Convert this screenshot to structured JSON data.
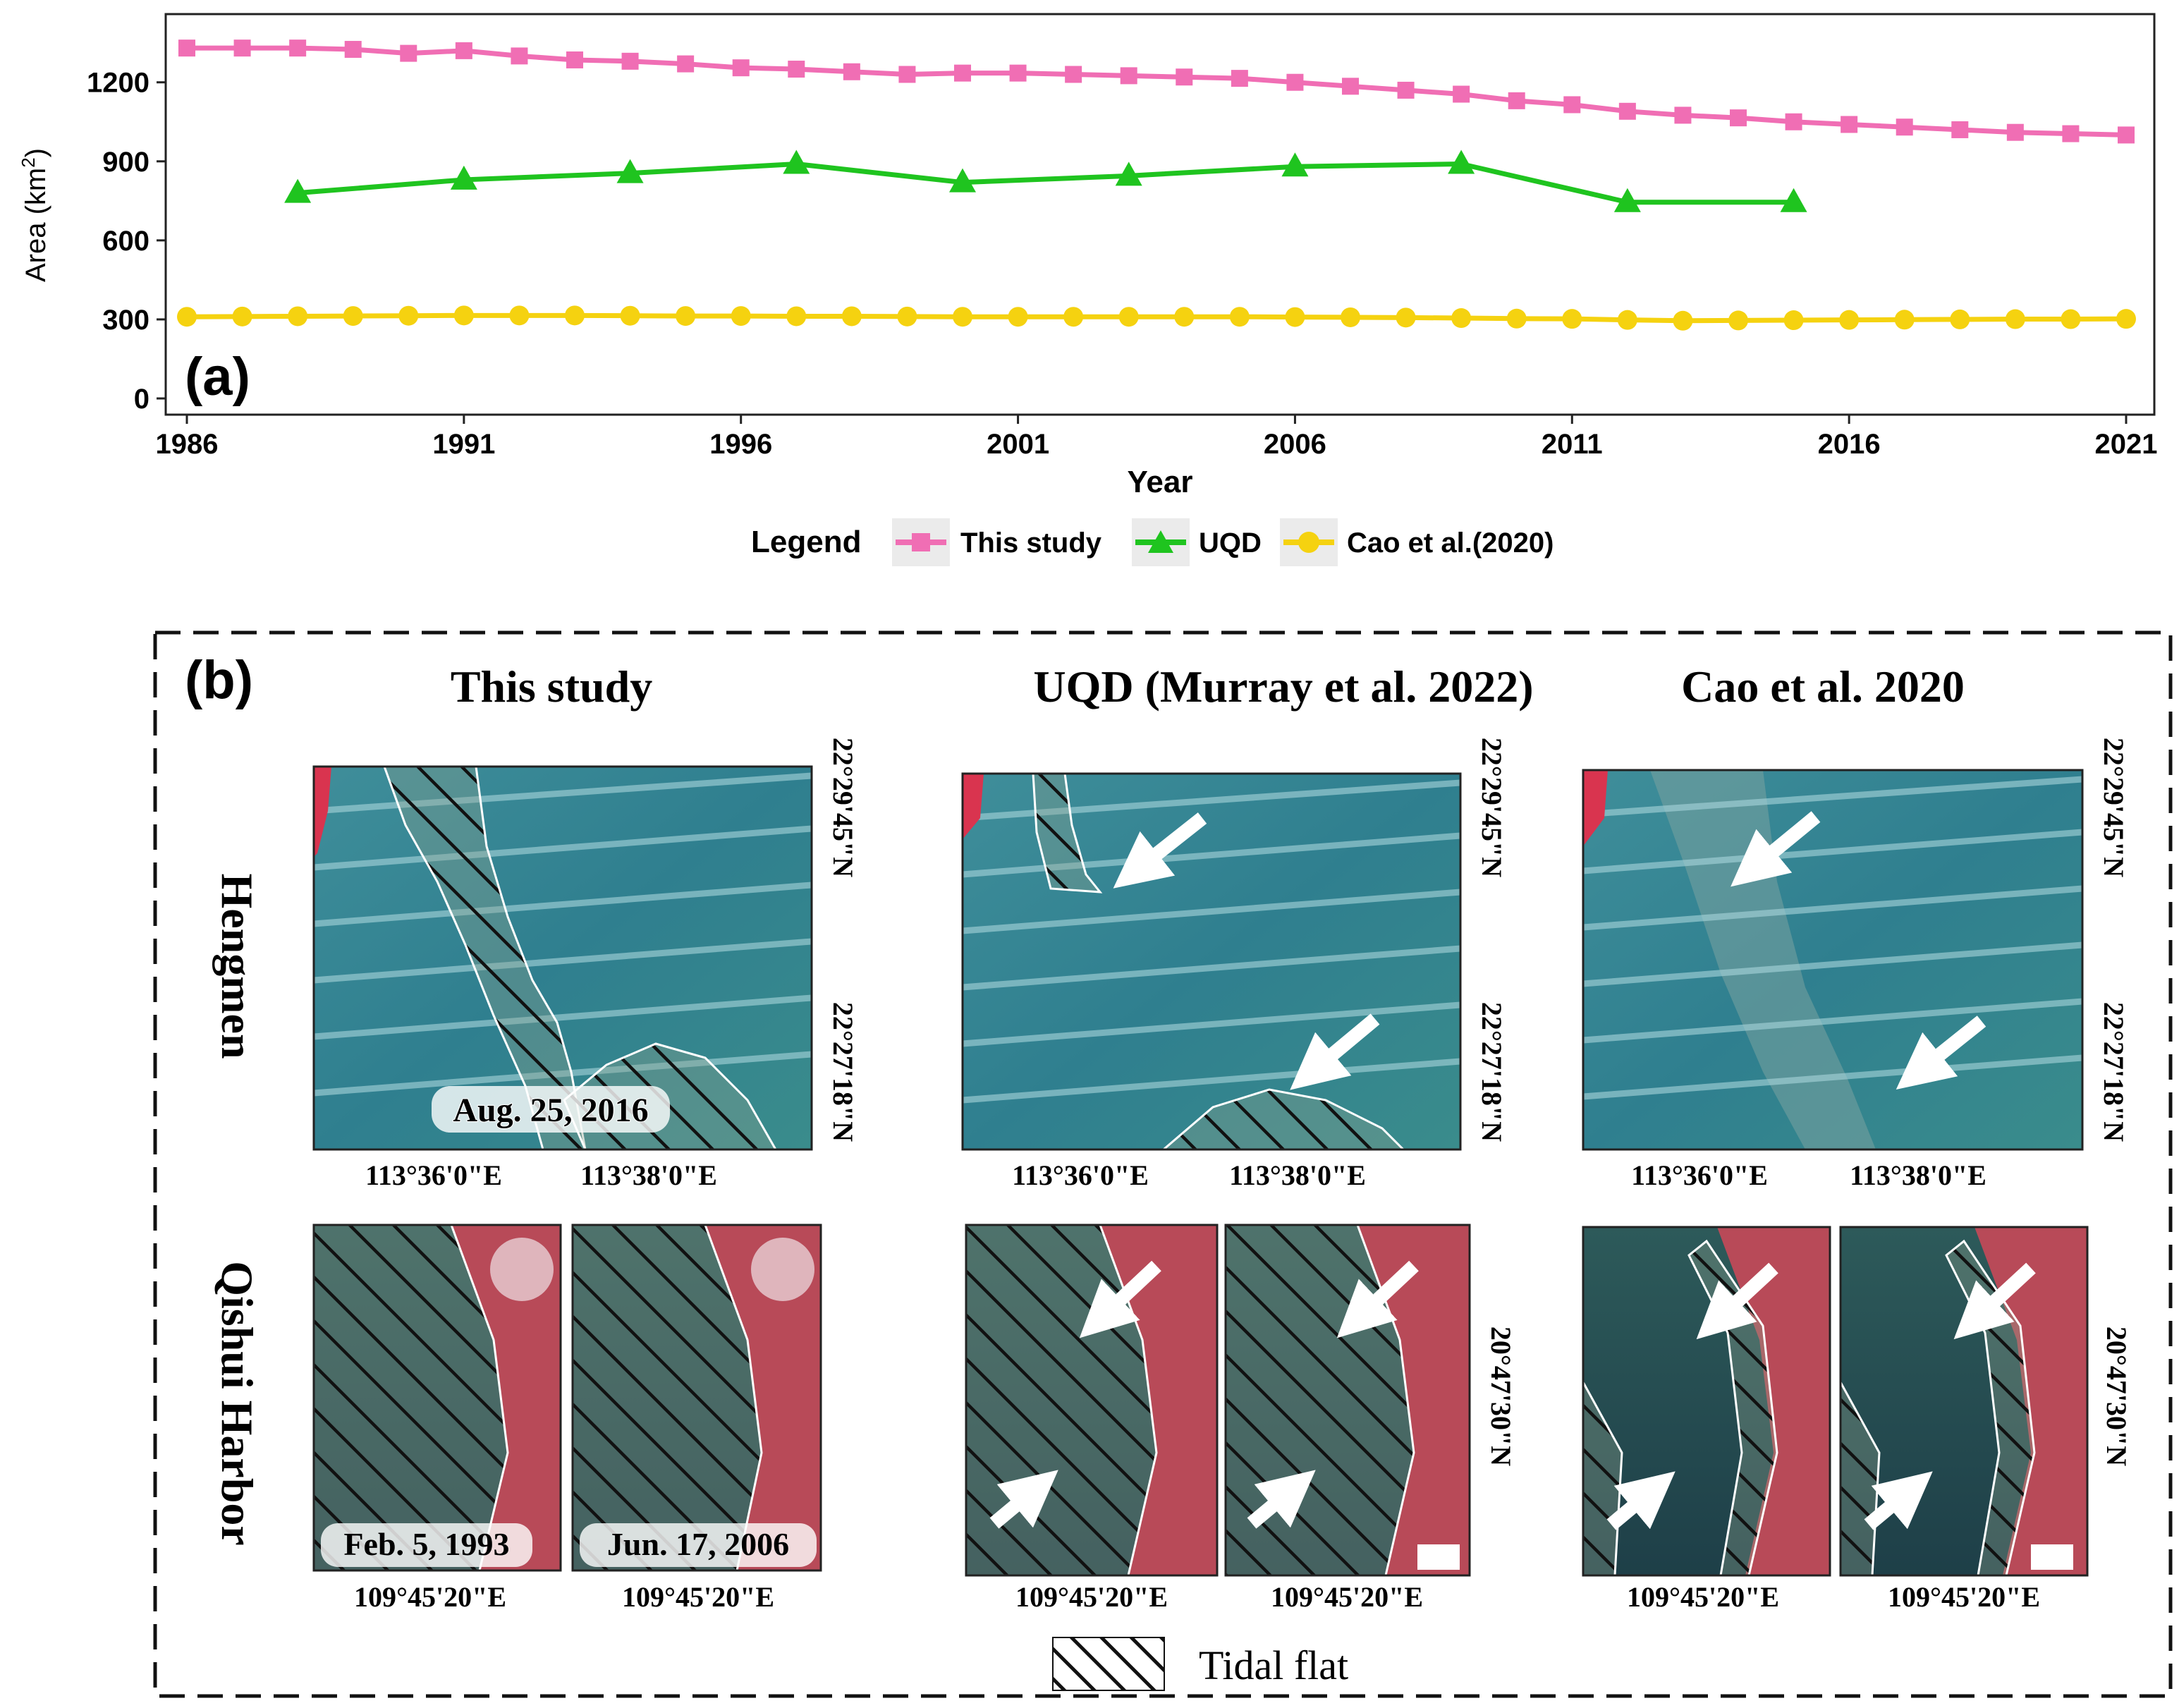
{
  "chart_data": {
    "type": "line",
    "panel_label": "(a)",
    "xlabel": "Year",
    "ylabel": "Area (km²)",
    "ylabel_main": "Area (km",
    "ylabel_sup": "2",
    "ylabel_close": ")",
    "xlim": [
      1986,
      2021
    ],
    "ylim": [
      0,
      1400
    ],
    "xticks": [
      1986,
      1991,
      1996,
      2001,
      2006,
      2011,
      2016,
      2021
    ],
    "yticks": [
      0,
      300,
      600,
      900,
      1200
    ],
    "legend_title": "Legend",
    "legend_position": "bottom",
    "grid": false,
    "series": [
      {
        "name": "This study",
        "color": "#f06eb4",
        "marker": "square",
        "x": [
          1986,
          1987,
          1988,
          1989,
          1990,
          1991,
          1992,
          1993,
          1994,
          1995,
          1996,
          1997,
          1998,
          1999,
          2000,
          2001,
          2002,
          2003,
          2004,
          2005,
          2006,
          2007,
          2008,
          2009,
          2010,
          2011,
          2012,
          2013,
          2014,
          2015,
          2016,
          2017,
          2018,
          2019,
          2020,
          2021
        ],
        "y": [
          1330,
          1330,
          1330,
          1325,
          1310,
          1320,
          1300,
          1285,
          1280,
          1270,
          1255,
          1250,
          1240,
          1230,
          1235,
          1235,
          1230,
          1225,
          1220,
          1215,
          1200,
          1185,
          1170,
          1155,
          1130,
          1115,
          1090,
          1075,
          1065,
          1050,
          1040,
          1030,
          1020,
          1010,
          1005,
          1000
        ]
      },
      {
        "name": "UQD",
        "color": "#1fc41f",
        "marker": "triangle",
        "x": [
          1988,
          1991,
          1994,
          1997,
          2000,
          2003,
          2006,
          2009,
          2012,
          2015
        ],
        "y": [
          780,
          830,
          855,
          890,
          820,
          845,
          880,
          890,
          745,
          745
        ]
      },
      {
        "name": "Cao et al.(2020)",
        "color": "#f5d210",
        "marker": "circle",
        "x": [
          1986,
          1987,
          1988,
          1989,
          1990,
          1991,
          1992,
          1993,
          1994,
          1995,
          1996,
          1997,
          1998,
          1999,
          2000,
          2001,
          2002,
          2003,
          2004,
          2005,
          2006,
          2007,
          2008,
          2009,
          2010,
          2011,
          2012,
          2013,
          2014,
          2015,
          2016,
          2017,
          2018,
          2019,
          2020,
          2021
        ],
        "y": [
          310,
          311,
          312,
          313,
          314,
          315,
          315,
          315,
          314,
          313,
          313,
          312,
          312,
          311,
          310,
          310,
          310,
          310,
          310,
          310,
          309,
          308,
          307,
          305,
          303,
          302,
          298,
          295,
          296,
          297,
          298,
          299,
          300,
          301,
          301,
          302
        ]
      }
    ]
  },
  "panel_b": {
    "label": "(b)",
    "columns": [
      "This study",
      "UQD (Murray et al. 2022)",
      "Cao et al. 2020"
    ],
    "rows": [
      "Hengmen",
      "Qishui Harbor"
    ],
    "hengmen": {
      "date": "Aug. 25, 2016",
      "lon_ticks": [
        "113°36'0\"E",
        "113°38'0\"E"
      ],
      "lat_ticks": [
        "22°29'45\"N",
        "22°27'18\"N"
      ]
    },
    "qishui": {
      "dates": [
        "Feb. 5, 1993",
        "Jun. 17, 2006"
      ],
      "lon_tick": "109°45'20\"E",
      "lat_tick": "20°47'30\"N"
    },
    "legend_label": "Tidal flat"
  }
}
